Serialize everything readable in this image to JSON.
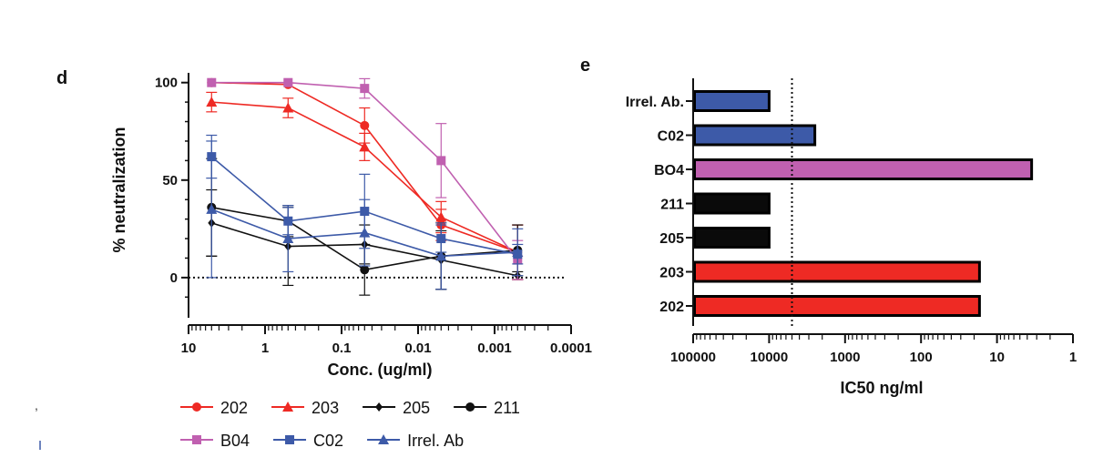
{
  "panels": {
    "d": {
      "letter": "d"
    },
    "e": {
      "letter": "e"
    }
  },
  "chart_data": [
    {
      "panel": "d",
      "type": "line",
      "xlabel": "Conc. (ug/ml)",
      "ylabel": "% neutralization",
      "x_scale": "log",
      "x_reversed": true,
      "xlim": [
        10,
        0.0001
      ],
      "ylim": [
        -15,
        105
      ],
      "xticks": [
        10,
        1,
        0.1,
        0.01,
        0.001,
        0.0001
      ],
      "xtick_labels": [
        "10",
        "1",
        "0.1",
        "0.01",
        "0.001",
        "0.0001"
      ],
      "yticks": [
        0,
        50,
        100
      ],
      "ytick_labels": [
        "0",
        "50",
        "100"
      ],
      "reference_line": {
        "y": 0,
        "style": "dotted"
      },
      "x": [
        5,
        0.5,
        0.05,
        0.005,
        0.0005
      ],
      "series": [
        {
          "name": "202",
          "color": "#ee2a24",
          "marker": "circle",
          "values": [
            100,
            99,
            78,
            27,
            13
          ],
          "errors": [
            0,
            0,
            9,
            8,
            14
          ]
        },
        {
          "name": "203",
          "color": "#ee2a24",
          "marker": "triangle",
          "values": [
            90,
            87,
            67,
            31,
            13
          ],
          "errors": [
            5,
            5,
            7,
            8,
            14
          ]
        },
        {
          "name": "205",
          "color": "#111111",
          "marker": "diamond",
          "values": [
            28,
            16,
            17,
            9,
            1
          ],
          "errors": [
            17,
            20,
            10,
            15,
            2
          ]
        },
        {
          "name": "211",
          "color": "#111111",
          "marker": "circle",
          "values": [
            36,
            29,
            4,
            11,
            14
          ],
          "errors": [
            25,
            8,
            13,
            17,
            13
          ]
        },
        {
          "name": "B04",
          "color": "#c060b0",
          "marker": "square",
          "values": [
            100,
            100,
            97,
            60,
            9
          ],
          "errors": [
            0,
            0,
            5,
            19,
            10
          ]
        },
        {
          "name": "C02",
          "color": "#3d5aa8",
          "marker": "square",
          "values": [
            62,
            29,
            34,
            20,
            12
          ],
          "errors": [
            11,
            7,
            19,
            7,
            5
          ]
        },
        {
          "name": "Irrel. Ab",
          "color": "#3d5aa8",
          "marker": "triangle",
          "values": [
            35,
            20,
            23,
            11,
            13
          ],
          "errors": [
            35,
            17,
            17,
            17,
            12
          ]
        }
      ],
      "legend": {
        "placement": "bottom",
        "rows": [
          [
            "202",
            "203",
            "205",
            "211"
          ],
          [
            "B04",
            "C02",
            "Irrel. Ab"
          ]
        ]
      }
    },
    {
      "panel": "e",
      "type": "bar",
      "orientation": "horizontal",
      "xlabel": "IC50 ng/ml",
      "x_scale": "log",
      "x_reversed": true,
      "xlim": [
        100000,
        1
      ],
      "xticks": [
        100000,
        10000,
        1000,
        100,
        10,
        1
      ],
      "xtick_labels": [
        "100000",
        "10000",
        "1000",
        "100",
        "10",
        "1"
      ],
      "reference_line": {
        "x": 5000,
        "style": "dotted"
      },
      "categories": [
        "Irrel. Ab.",
        "C02",
        "BO4",
        "211",
        "205",
        "203",
        "202"
      ],
      "values": [
        10000,
        2500,
        3.5,
        10000,
        10000,
        17,
        17
      ],
      "colors": [
        "#3d5aa8",
        "#3d5aa8",
        "#c060b0",
        "#0a0a0a",
        "#0a0a0a",
        "#ee2a24",
        "#ee2a24"
      ]
    }
  ]
}
